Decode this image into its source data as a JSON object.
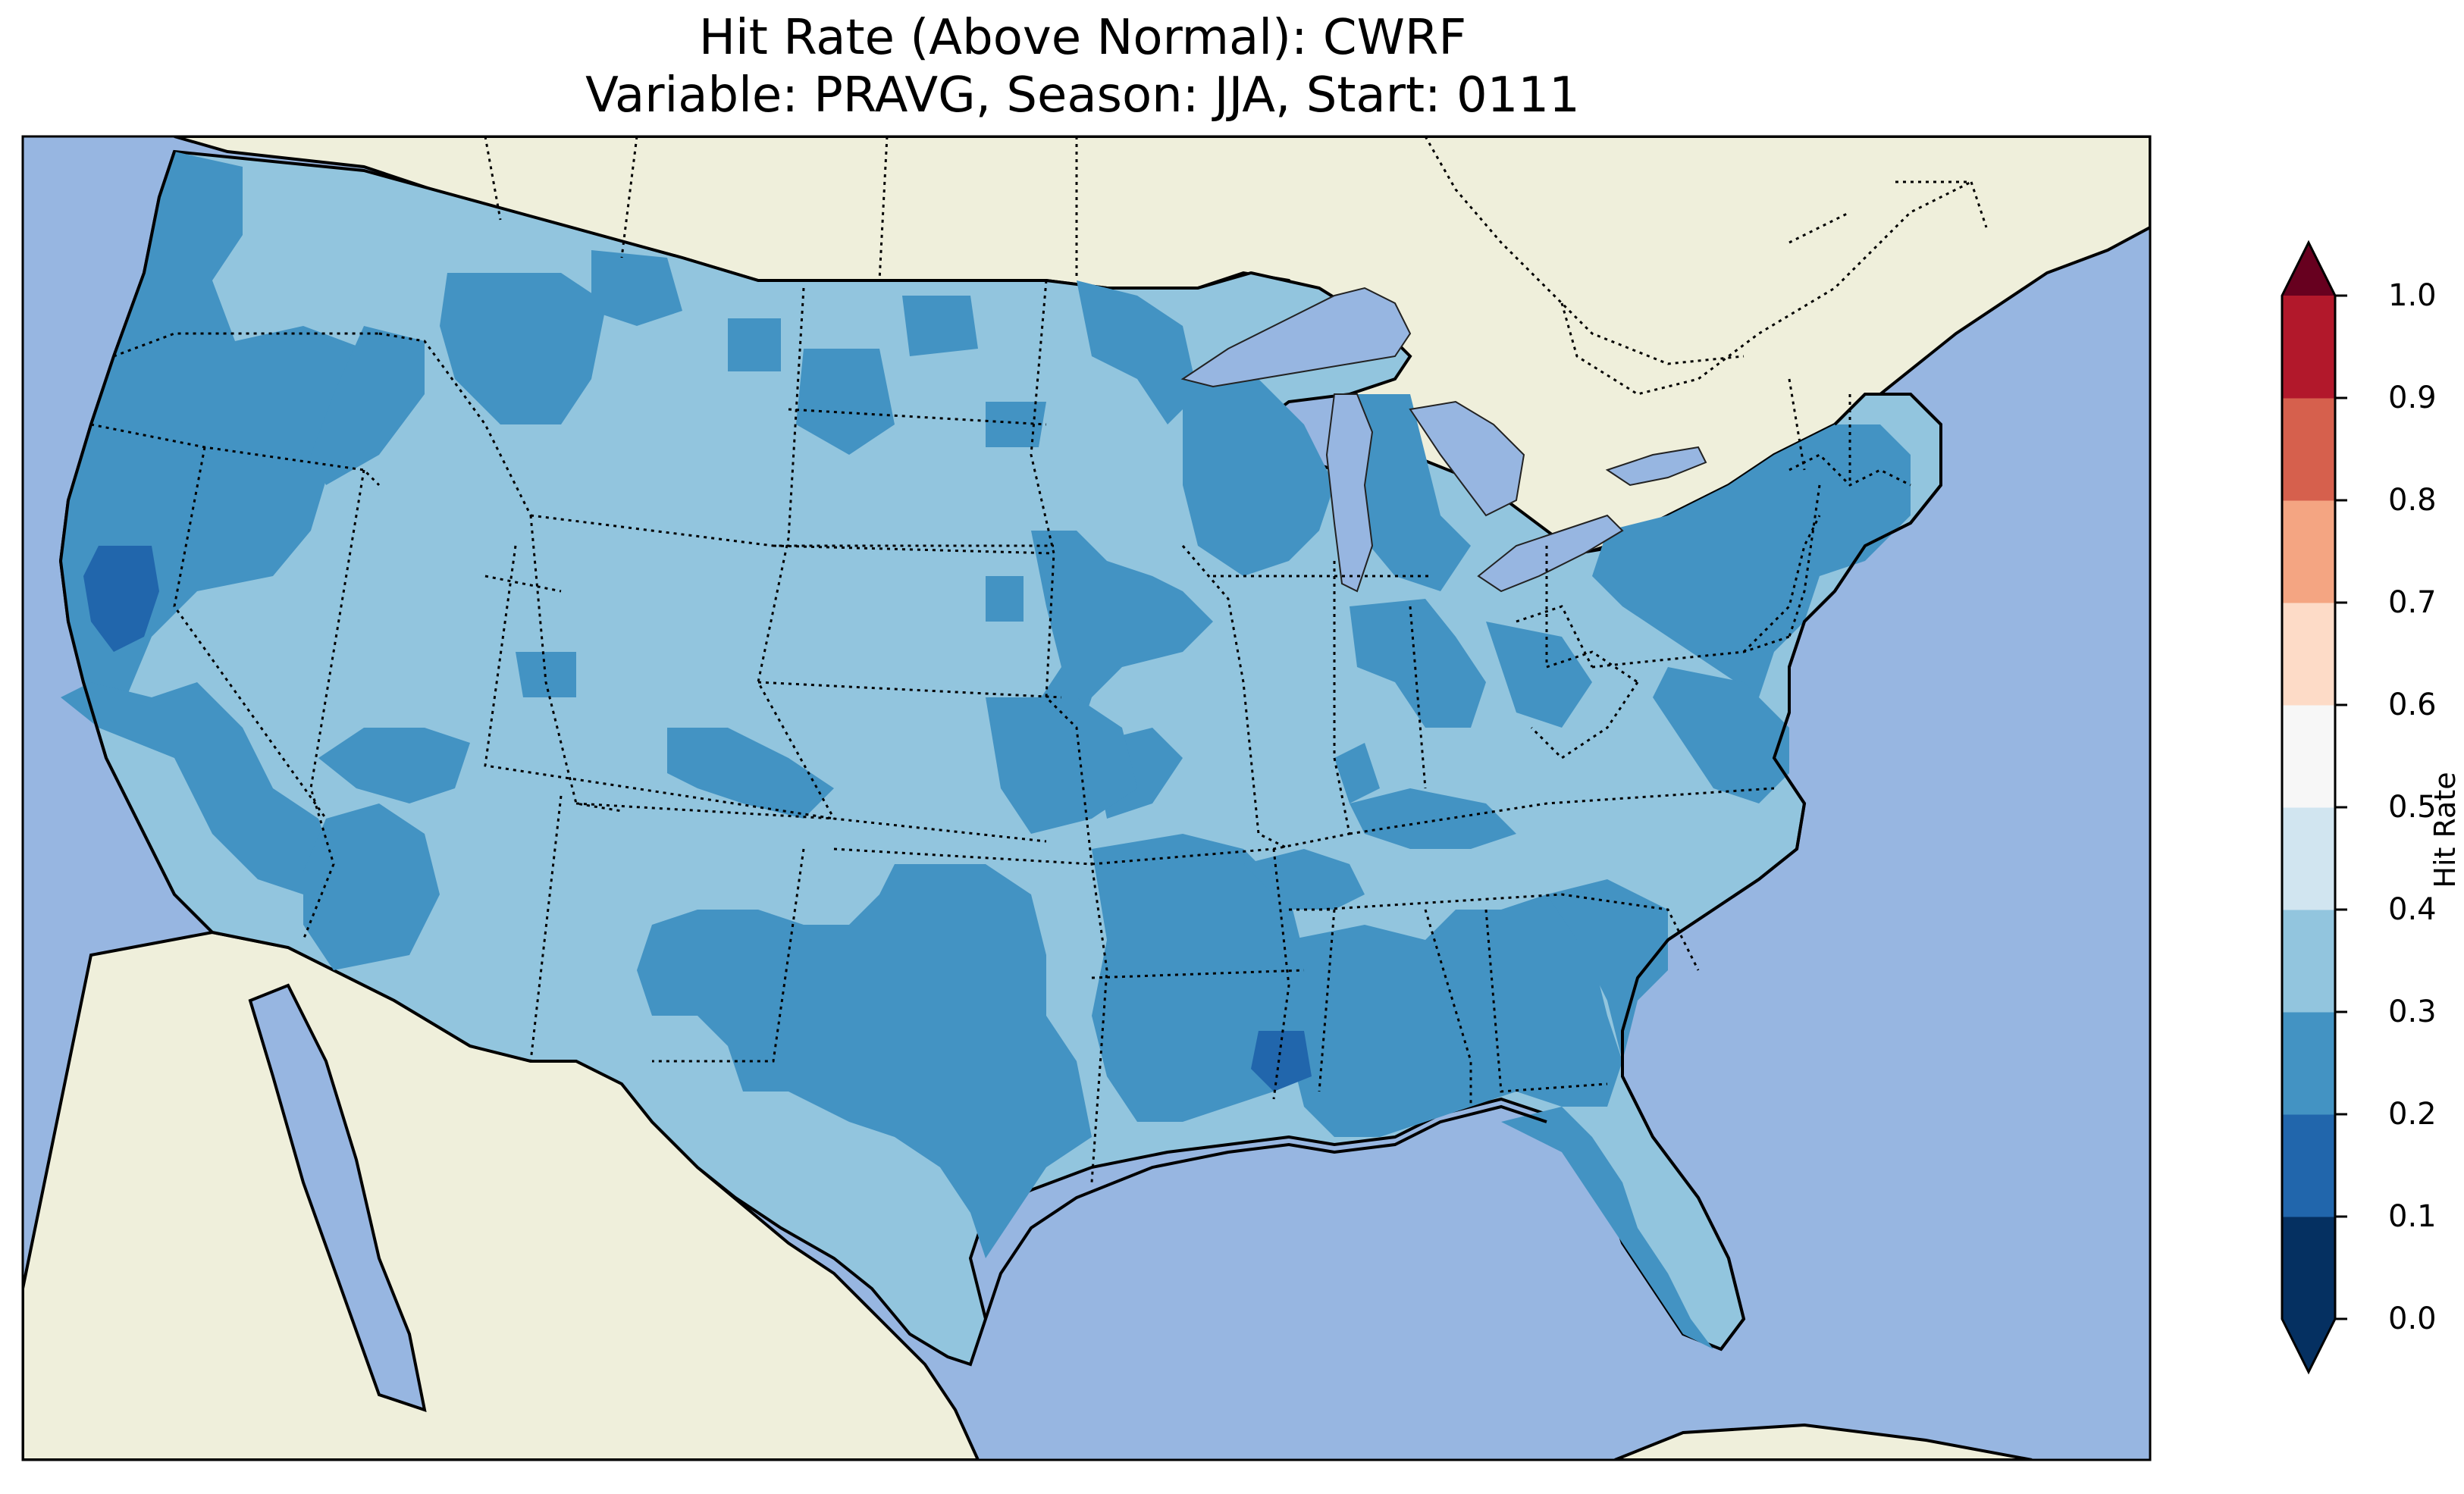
{
  "title": {
    "line1": "Hit Rate (Above Normal): CWRF",
    "line2": "Variable: PRAVG, Season: JJA, Start: 0111"
  },
  "map": {
    "region": "Contiguous United States",
    "ocean_color": "#97b6e1",
    "land_color": "#efefdb",
    "features": [
      "coastlines",
      "state-borders",
      "country-borders",
      "lakes"
    ],
    "dominant_class": "0.3–0.4",
    "secondary_class": "0.2–0.3",
    "small_patches_class": "0.1–0.2"
  },
  "colorbar": {
    "label": "Hit Rate",
    "ticks": [
      "0.0",
      "0.1",
      "0.2",
      "0.3",
      "0.4",
      "0.5",
      "0.6",
      "0.7",
      "0.8",
      "0.9",
      "1.0"
    ],
    "colors": [
      "#053061",
      "#2166ac",
      "#4393c3",
      "#92c5de",
      "#d1e5f0",
      "#f7f7f7",
      "#fddbc7",
      "#f4a582",
      "#d6604d",
      "#b2182b"
    ],
    "extend": "both",
    "under_color": "#053061",
    "over_color": "#67001f"
  }
}
